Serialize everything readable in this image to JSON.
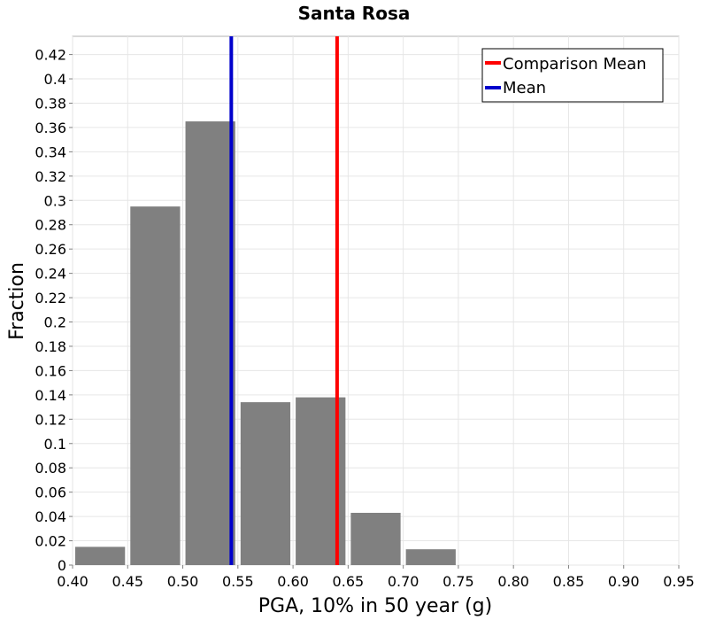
{
  "chart_data": {
    "type": "bar",
    "title": "Santa Rosa",
    "xlabel": "PGA, 10% in 50 year (g)",
    "ylabel": "Fraction",
    "xlim": [
      0.4,
      0.95
    ],
    "ylim": [
      0,
      0.435
    ],
    "x_ticks": [
      "0.40",
      "0.45",
      "0.50",
      "0.55",
      "0.60",
      "0.65",
      "0.70",
      "0.75",
      "0.80",
      "0.85",
      "0.90",
      "0.95"
    ],
    "y_ticks": [
      "0",
      "0.02",
      "0.04",
      "0.06",
      "0.08",
      "0.1",
      "0.12",
      "0.14",
      "0.16",
      "0.18",
      "0.2",
      "0.22",
      "0.24",
      "0.26",
      "0.28",
      "0.3",
      "0.32",
      "0.34",
      "0.36",
      "0.38",
      "0.4",
      "0.42"
    ],
    "grid": true,
    "bar_color": "#808080",
    "bins": [
      {
        "start": 0.4,
        "end": 0.45,
        "value": 0.015
      },
      {
        "start": 0.45,
        "end": 0.5,
        "value": 0.295
      },
      {
        "start": 0.5,
        "end": 0.55,
        "value": 0.365
      },
      {
        "start": 0.55,
        "end": 0.6,
        "value": 0.134
      },
      {
        "start": 0.6,
        "end": 0.65,
        "value": 0.138
      },
      {
        "start": 0.65,
        "end": 0.7,
        "value": 0.043
      },
      {
        "start": 0.7,
        "end": 0.75,
        "value": 0.013
      }
    ],
    "lines": [
      {
        "name": "Comparison Mean",
        "x": 0.64,
        "color": "#ff0000"
      },
      {
        "name": "Mean",
        "x": 0.544,
        "color": "#0000cc"
      }
    ],
    "legend_position": "top-right"
  }
}
